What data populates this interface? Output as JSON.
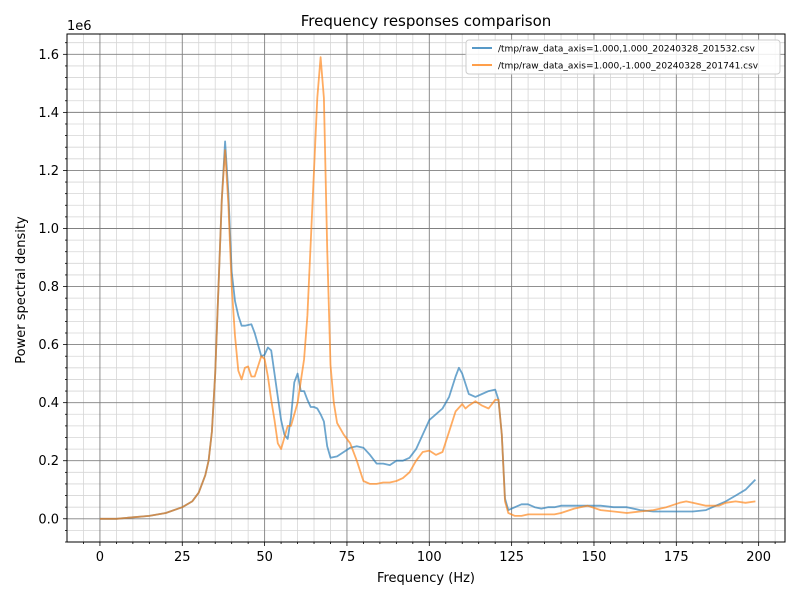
{
  "chart_data": {
    "type": "line",
    "title": "Frequency responses comparison",
    "xlabel": "Frequency (Hz)",
    "ylabel": "Power spectral density",
    "y_offset_text": "1e6",
    "xlim": [
      -10,
      208
    ],
    "ylim": [
      -0.08,
      1.67
    ],
    "x_ticks": [
      0,
      25,
      50,
      75,
      100,
      125,
      150,
      175,
      200
    ],
    "x_tick_labels": [
      "0",
      "25",
      "50",
      "75",
      "100",
      "125",
      "150",
      "175",
      "200"
    ],
    "y_ticks": [
      0.0,
      0.2,
      0.4,
      0.6,
      0.8,
      1.0,
      1.2,
      1.4,
      1.6
    ],
    "y_tick_labels": [
      "0.0",
      "0.2",
      "0.4",
      "0.6",
      "0.8",
      "1.0",
      "1.2",
      "1.4",
      "1.6"
    ],
    "grid": true,
    "minor_grid": true,
    "legend_position": "top-right",
    "series": [
      {
        "name": "/tmp/raw_data_axis=1.000,1.000_20240328_201532.csv",
        "color": "#1f77b4",
        "points": [
          [
            0,
            0
          ],
          [
            5,
            0
          ],
          [
            10,
            0.005
          ],
          [
            15,
            0.01
          ],
          [
            20,
            0.02
          ],
          [
            25,
            0.04
          ],
          [
            28,
            0.06
          ],
          [
            30,
            0.09
          ],
          [
            32,
            0.15
          ],
          [
            33,
            0.2
          ],
          [
            34,
            0.3
          ],
          [
            35,
            0.5
          ],
          [
            36,
            0.8
          ],
          [
            37,
            1.1
          ],
          [
            38,
            1.3
          ],
          [
            39,
            1.12
          ],
          [
            40,
            0.85
          ],
          [
            41,
            0.75
          ],
          [
            42,
            0.7
          ],
          [
            43,
            0.665
          ],
          [
            44,
            0.665
          ],
          [
            46,
            0.67
          ],
          [
            47,
            0.64
          ],
          [
            48,
            0.6
          ],
          [
            49,
            0.56
          ],
          [
            50,
            0.565
          ],
          [
            51,
            0.59
          ],
          [
            52,
            0.58
          ],
          [
            53,
            0.5
          ],
          [
            54,
            0.42
          ],
          [
            55,
            0.34
          ],
          [
            56,
            0.29
          ],
          [
            57,
            0.275
          ],
          [
            58,
            0.35
          ],
          [
            59,
            0.47
          ],
          [
            60,
            0.5
          ],
          [
            61,
            0.44
          ],
          [
            62,
            0.44
          ],
          [
            63,
            0.41
          ],
          [
            64,
            0.385
          ],
          [
            65,
            0.385
          ],
          [
            66,
            0.38
          ],
          [
            67,
            0.36
          ],
          [
            68,
            0.335
          ],
          [
            69,
            0.25
          ],
          [
            70,
            0.21
          ],
          [
            72,
            0.215
          ],
          [
            74,
            0.23
          ],
          [
            76,
            0.245
          ],
          [
            78,
            0.25
          ],
          [
            80,
            0.245
          ],
          [
            82,
            0.22
          ],
          [
            84,
            0.19
          ],
          [
            86,
            0.19
          ],
          [
            88,
            0.185
          ],
          [
            90,
            0.2
          ],
          [
            92,
            0.2
          ],
          [
            94,
            0.21
          ],
          [
            96,
            0.24
          ],
          [
            98,
            0.29
          ],
          [
            100,
            0.34
          ],
          [
            102,
            0.36
          ],
          [
            104,
            0.38
          ],
          [
            106,
            0.42
          ],
          [
            108,
            0.49
          ],
          [
            109,
            0.52
          ],
          [
            110,
            0.5
          ],
          [
            112,
            0.43
          ],
          [
            114,
            0.42
          ],
          [
            116,
            0.43
          ],
          [
            118,
            0.44
          ],
          [
            120,
            0.445
          ],
          [
            121,
            0.41
          ],
          [
            122,
            0.29
          ],
          [
            123,
            0.07
          ],
          [
            124,
            0.03
          ],
          [
            126,
            0.04
          ],
          [
            128,
            0.05
          ],
          [
            130,
            0.05
          ],
          [
            132,
            0.04
          ],
          [
            134,
            0.035
          ],
          [
            136,
            0.04
          ],
          [
            138,
            0.04
          ],
          [
            140,
            0.045
          ],
          [
            144,
            0.045
          ],
          [
            148,
            0.045
          ],
          [
            152,
            0.045
          ],
          [
            156,
            0.04
          ],
          [
            160,
            0.04
          ],
          [
            164,
            0.03
          ],
          [
            168,
            0.025
          ],
          [
            172,
            0.025
          ],
          [
            176,
            0.025
          ],
          [
            180,
            0.025
          ],
          [
            184,
            0.03
          ],
          [
            186,
            0.04
          ],
          [
            188,
            0.05
          ],
          [
            190,
            0.06
          ],
          [
            193,
            0.08
          ],
          [
            196,
            0.1
          ],
          [
            199,
            0.135
          ]
        ]
      },
      {
        "name": "/tmp/raw_data_axis=1.000,-1.000_20240328_201741.csv",
        "color": "#ff7f0e",
        "points": [
          [
            0,
            0
          ],
          [
            5,
            0
          ],
          [
            10,
            0.005
          ],
          [
            15,
            0.01
          ],
          [
            20,
            0.02
          ],
          [
            25,
            0.04
          ],
          [
            28,
            0.06
          ],
          [
            30,
            0.09
          ],
          [
            32,
            0.15
          ],
          [
            33,
            0.2
          ],
          [
            34,
            0.3
          ],
          [
            35,
            0.5
          ],
          [
            36,
            0.8
          ],
          [
            37,
            1.1
          ],
          [
            38,
            1.27
          ],
          [
            39,
            1.08
          ],
          [
            40,
            0.8
          ],
          [
            41,
            0.63
          ],
          [
            42,
            0.51
          ],
          [
            43,
            0.48
          ],
          [
            44,
            0.52
          ],
          [
            45,
            0.525
          ],
          [
            46,
            0.49
          ],
          [
            47,
            0.49
          ],
          [
            48,
            0.525
          ],
          [
            49,
            0.56
          ],
          [
            50,
            0.55
          ],
          [
            51,
            0.49
          ],
          [
            52,
            0.41
          ],
          [
            53,
            0.34
          ],
          [
            54,
            0.26
          ],
          [
            55,
            0.24
          ],
          [
            56,
            0.28
          ],
          [
            57,
            0.32
          ],
          [
            58,
            0.32
          ],
          [
            60,
            0.4
          ],
          [
            62,
            0.55
          ],
          [
            63,
            0.7
          ],
          [
            64,
            0.95
          ],
          [
            65,
            1.2
          ],
          [
            66,
            1.45
          ],
          [
            67,
            1.59
          ],
          [
            68,
            1.45
          ],
          [
            69,
            0.93
          ],
          [
            70,
            0.53
          ],
          [
            71,
            0.4
          ],
          [
            72,
            0.33
          ],
          [
            74,
            0.29
          ],
          [
            76,
            0.26
          ],
          [
            78,
            0.2
          ],
          [
            80,
            0.13
          ],
          [
            82,
            0.12
          ],
          [
            84,
            0.12
          ],
          [
            86,
            0.125
          ],
          [
            88,
            0.125
          ],
          [
            90,
            0.13
          ],
          [
            92,
            0.14
          ],
          [
            94,
            0.16
          ],
          [
            96,
            0.2
          ],
          [
            98,
            0.23
          ],
          [
            100,
            0.235
          ],
          [
            102,
            0.22
          ],
          [
            104,
            0.23
          ],
          [
            106,
            0.3
          ],
          [
            108,
            0.37
          ],
          [
            110,
            0.395
          ],
          [
            111,
            0.38
          ],
          [
            112,
            0.39
          ],
          [
            114,
            0.405
          ],
          [
            116,
            0.39
          ],
          [
            118,
            0.38
          ],
          [
            120,
            0.41
          ],
          [
            121,
            0.41
          ],
          [
            122,
            0.29
          ],
          [
            123,
            0.06
          ],
          [
            124,
            0.02
          ],
          [
            126,
            0.01
          ],
          [
            128,
            0.01
          ],
          [
            130,
            0.015
          ],
          [
            134,
            0.015
          ],
          [
            138,
            0.015
          ],
          [
            140,
            0.02
          ],
          [
            144,
            0.035
          ],
          [
            148,
            0.045
          ],
          [
            152,
            0.03
          ],
          [
            156,
            0.025
          ],
          [
            160,
            0.02
          ],
          [
            164,
            0.025
          ],
          [
            168,
            0.03
          ],
          [
            172,
            0.04
          ],
          [
            176,
            0.055
          ],
          [
            178,
            0.06
          ],
          [
            180,
            0.055
          ],
          [
            184,
            0.045
          ],
          [
            188,
            0.045
          ],
          [
            190,
            0.055
          ],
          [
            193,
            0.06
          ],
          [
            196,
            0.055
          ],
          [
            199,
            0.06
          ]
        ]
      }
    ]
  }
}
